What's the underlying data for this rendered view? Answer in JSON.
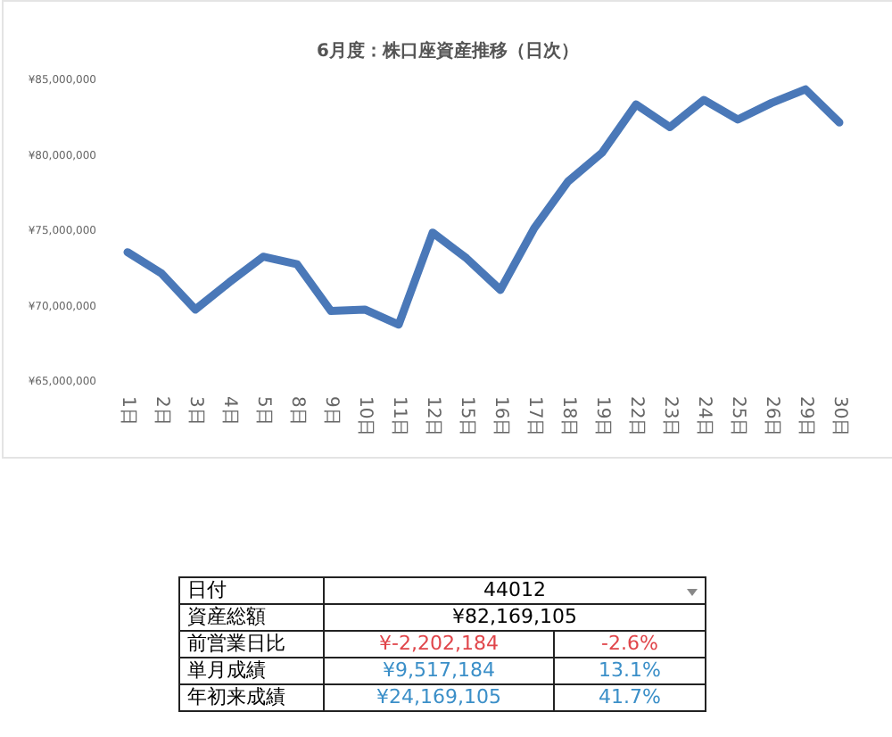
{
  "chart_data": [
    {
      "type": "line",
      "title": "6月度：株口座資産推移（日次）",
      "categories": [
        "1日",
        "2日",
        "3日",
        "4日",
        "5日",
        "8日",
        "9日",
        "10日",
        "11日",
        "12日",
        "15日",
        "16日",
        "17日",
        "18日",
        "19日",
        "22日",
        "23日",
        "24日",
        "25日",
        "26日",
        "29日",
        "30日"
      ],
      "series": [
        {
          "color": "#4a78b8",
          "values": [
            73600000,
            72200000,
            69800000,
            71600000,
            73300000,
            72800000,
            69700000,
            69800000,
            68800000,
            74900000,
            73200000,
            71100000,
            75200000,
            78300000,
            80200000,
            83400000,
            81900000,
            83700000,
            82400000,
            83500000,
            84400000,
            82200000
          ]
        }
      ],
      "ylim": [
        65000000,
        85000000
      ],
      "yticks": [
        {
          "value": 65000000,
          "label": "¥65,000,000"
        },
        {
          "value": 70000000,
          "label": "¥70,000,000"
        },
        {
          "value": 75000000,
          "label": "¥75,000,000"
        },
        {
          "value": 80000000,
          "label": "¥80,000,000"
        },
        {
          "value": 85000000,
          "label": "¥85,000,000"
        }
      ],
      "grid": false,
      "marker": "none",
      "line_style": "solid"
    },
    {
      "type": "other",
      "y_categories": [
        "日付",
        "資産総額",
        "前営業日比",
        "単月成績",
        "年初来成績"
      ],
      "cell_labels": [
        [
          "44012"
        ],
        [
          "¥82,169,105"
        ],
        [
          "¥-2,202,184",
          "-2.6%"
        ],
        [
          "¥9,517,184",
          "13.1%"
        ],
        [
          "¥24,169,105",
          "41.7%"
        ]
      ],
      "colors": [
        "#000000",
        "#000000",
        "#e0454a",
        "#3b8fc8",
        "#3b8fc8"
      ]
    }
  ]
}
